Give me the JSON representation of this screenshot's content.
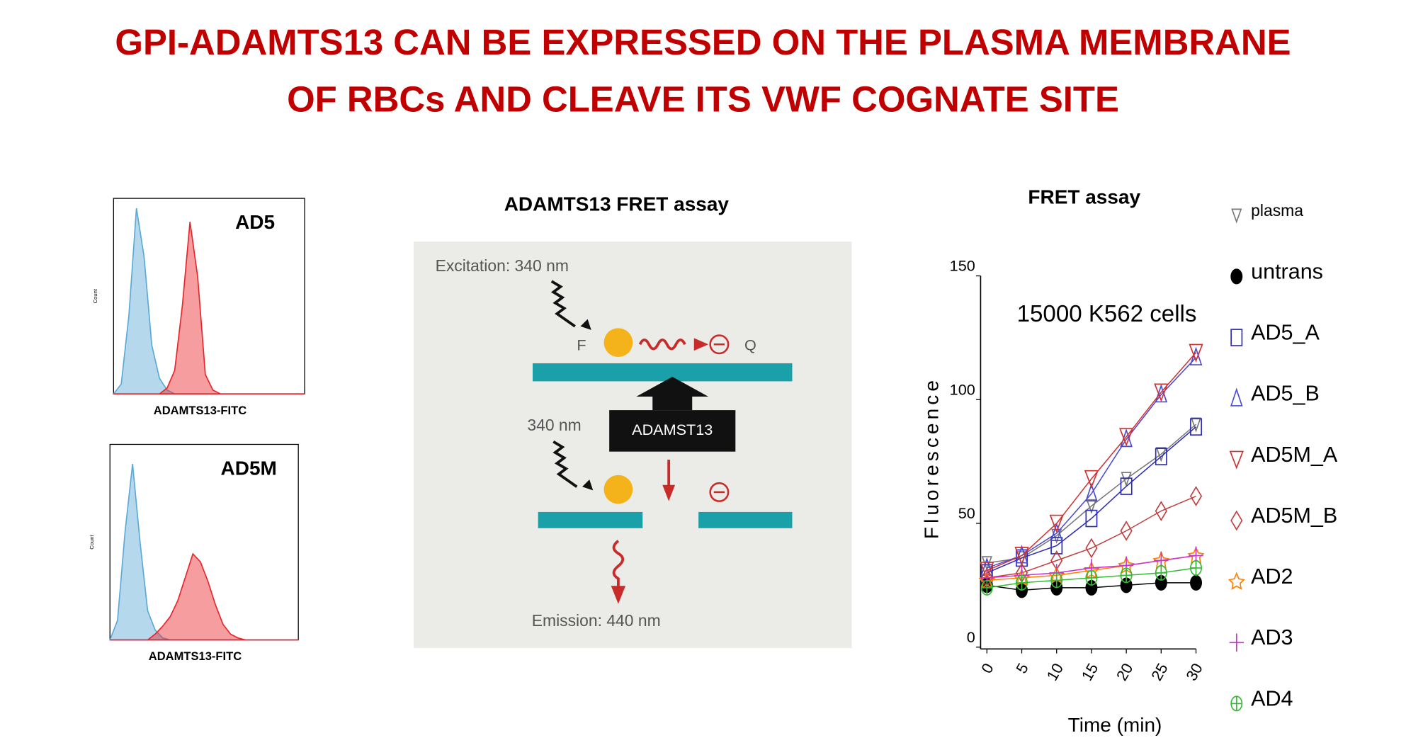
{
  "title": [
    "GPI-ADAMTS13 CAN BE EXPRESSED ON THE PLASMA MEMBRANE",
    "OF RBCs AND CLEAVE ITS  VWF  COGNATE SITE"
  ],
  "diagram": {
    "title": "ADAMTS13 FRET assay",
    "excitation": "Excitation: 340 nm",
    "fluorophore": "F",
    "quencher": "Q",
    "enzyme": "ADAMST13",
    "wavelength": "340 nm",
    "emission": "Emission: 440 nm"
  },
  "chart_data": [
    {
      "type": "area",
      "annotation": "AD5",
      "x_label": "ADAMTS13-FITC",
      "y_label": "Count",
      "x": [
        0,
        4,
        8,
        12,
        16,
        20,
        24,
        28,
        32,
        36,
        40,
        44,
        48,
        52,
        56,
        60,
        64,
        68,
        72,
        76,
        80,
        84,
        88,
        92,
        96,
        100
      ],
      "xlim": [
        0,
        100
      ],
      "ylim": [
        0,
        100
      ],
      "series": [
        {
          "color": "#5aa9d6",
          "values": [
            0,
            5,
            40,
            95,
            70,
            25,
            8,
            2,
            0,
            0,
            0,
            0,
            0,
            0,
            0,
            0,
            0,
            0,
            0,
            0,
            0,
            0,
            0,
            0,
            0,
            0
          ]
        },
        {
          "color": "#e8252a",
          "values": [
            0,
            0,
            0,
            0,
            0,
            0,
            0,
            3,
            12,
            45,
            88,
            60,
            10,
            2,
            0,
            0,
            0,
            0,
            0,
            0,
            0,
            0,
            0,
            0,
            0,
            0
          ]
        }
      ]
    },
    {
      "type": "area",
      "annotation": "AD5M",
      "x_label": "ADAMTS13-FITC",
      "y_label": "Count",
      "x": [
        0,
        4,
        8,
        12,
        16,
        20,
        24,
        28,
        32,
        36,
        40,
        44,
        48,
        52,
        56,
        60,
        64,
        68,
        72,
        76,
        80,
        84,
        88,
        92,
        96,
        100
      ],
      "xlim": [
        0,
        100
      ],
      "ylim": [
        0,
        100
      ],
      "series": [
        {
          "color": "#5aa9d6",
          "values": [
            0,
            10,
            55,
            90,
            50,
            15,
            5,
            1,
            0,
            0,
            0,
            0,
            0,
            0,
            0,
            0,
            0,
            0,
            0,
            0,
            0,
            0,
            0,
            0,
            0,
            0
          ]
        },
        {
          "color": "#e8252a",
          "values": [
            0,
            0,
            0,
            0,
            0,
            0,
            3,
            7,
            12,
            20,
            32,
            44,
            40,
            30,
            18,
            8,
            3,
            1,
            0,
            0,
            0,
            0,
            0,
            0,
            0,
            0
          ]
        }
      ]
    },
    {
      "type": "line",
      "title": "FRET assay",
      "annotation": "15000 K562 cells",
      "x_label": "Time (min)",
      "y_label": "Fluorescence",
      "x": [
        0,
        5,
        10,
        15,
        20,
        25,
        30
      ],
      "xlim": [
        0,
        30
      ],
      "xticks": [
        0,
        5,
        10,
        15,
        20,
        25,
        30
      ],
      "ylim": [
        0,
        150
      ],
      "yticks": [
        0,
        50,
        100,
        150
      ],
      "series": [
        {
          "name": "plasma",
          "color": "#777777",
          "marker": "triangle-down-filled",
          "values": [
            34,
            36,
            45,
            57,
            68,
            78,
            90
          ]
        },
        {
          "name": "untrans",
          "color": "#000000",
          "marker": "ellipse-filled",
          "values": [
            25,
            23,
            24,
            24,
            25,
            26,
            26
          ]
        },
        {
          "name": "AD5_A",
          "color": "#2b2bb5",
          "marker": "square",
          "values": [
            30,
            36,
            41,
            52,
            65,
            77,
            89
          ]
        },
        {
          "name": "AD5_B",
          "color": "#4a4ad0",
          "marker": "triangle-up",
          "values": [
            32,
            37,
            46,
            62,
            84,
            102,
            117
          ]
        },
        {
          "name": "AD5M_A",
          "color": "#d03030",
          "marker": "triangle-down",
          "values": [
            31,
            37,
            50,
            68,
            85,
            103,
            119
          ]
        },
        {
          "name": "AD5M_B",
          "color": "#c04040",
          "marker": "diamond",
          "values": [
            28,
            30,
            35,
            40,
            47,
            55,
            61
          ]
        },
        {
          "name": "AD2",
          "color": "#ff7f00",
          "marker": "star",
          "values": [
            27,
            28,
            29,
            31,
            33,
            35,
            37
          ]
        },
        {
          "name": "AD3",
          "color": "#cc33cc",
          "marker": "plus",
          "values": [
            28,
            29,
            30,
            32,
            33,
            35,
            37
          ]
        },
        {
          "name": "AD4",
          "color": "#33bb33",
          "marker": "circle-plus",
          "values": [
            24,
            26,
            27,
            28,
            29,
            30,
            32
          ]
        }
      ]
    }
  ]
}
